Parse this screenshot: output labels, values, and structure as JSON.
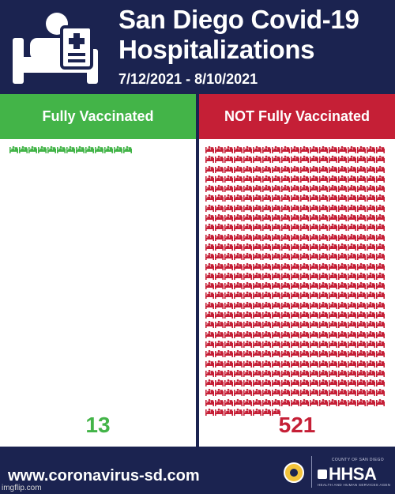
{
  "header": {
    "title_line1": "San Diego Covid-19",
    "title_line2": "Hospitalizations",
    "dates": "7/12/2021 - 8/10/2021"
  },
  "columns": {
    "vaccinated": {
      "label": "Fully Vaccinated",
      "count": "13",
      "icon_count": 13,
      "color": "#43b448",
      "icon": "hospital-bed-icon"
    },
    "unvaccinated": {
      "label": "NOT Fully Vaccinated",
      "count": "521",
      "icon_count": 521,
      "color": "#c51f36",
      "icon": "hospital-bed-icon"
    }
  },
  "footer": {
    "url": "www.coronavirus-sd.com",
    "agency_top": "COUNTY OF SAN DIEGO",
    "agency": "HHSA",
    "agency_sub": "HEALTH AND HUMAN SERVICES AGENCY"
  },
  "watermark": "imgflip.com",
  "colors": {
    "navy": "#1b2350",
    "green": "#43b448",
    "red": "#c51f36"
  }
}
